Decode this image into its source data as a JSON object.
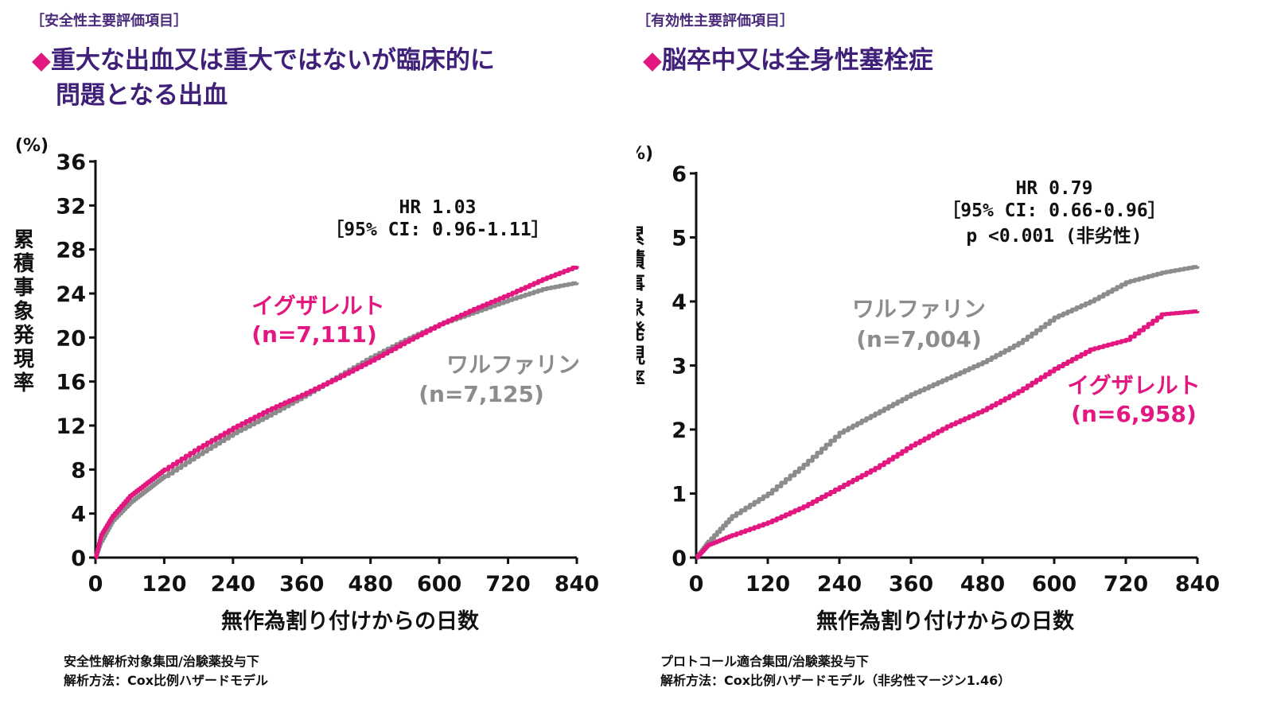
{
  "colors": {
    "pink": "#e2177f",
    "gray": "#8c8c8c",
    "heading": "#3f1f78",
    "axis": "#111111"
  },
  "left": {
    "category": "［安全性主要評価項目］",
    "diamond": "◆",
    "title_line1": "重大な出血又は重大ではないが臨床的に",
    "title_line2": "問題となる出血",
    "footnote_line1": "安全性解析対象集団/治験薬投与下",
    "footnote_line2": "解析方法：Cox比例ハザードモデル"
  },
  "right": {
    "category": "［有効性主要評価項目］",
    "diamond": "◆",
    "title_line1": "脳卒中又は全身性塞栓症",
    "footnote_line1": "プロトコール適合集団/治験薬投与下",
    "footnote_line2": "解析方法：Cox比例ハザードモデル（非劣性マージン1.46）"
  },
  "chart_data": [
    {
      "type": "line",
      "unit_label": "(%)",
      "ylabel": "累積事象発現率",
      "xlabel": "無作為割り付けからの日数",
      "xlim": [
        0,
        840
      ],
      "ylim": [
        0,
        36
      ],
      "x_ticks": [
        0,
        120,
        240,
        360,
        480,
        600,
        720,
        840
      ],
      "y_ticks": [
        0,
        4,
        8,
        12,
        16,
        20,
        24,
        28,
        32,
        36
      ],
      "stats": [
        "HR 1.03",
        "［95% CI: 0.96-1.11］"
      ],
      "series": [
        {
          "name": "ワルファリン",
          "n_label": "(n=7,125)",
          "color": "#8c8c8c",
          "x": [
            0,
            10,
            30,
            60,
            90,
            120,
            180,
            240,
            300,
            360,
            420,
            480,
            540,
            600,
            660,
            720,
            780,
            840
          ],
          "values": [
            0,
            1.5,
            3.4,
            5.0,
            6.2,
            7.4,
            9.4,
            11.3,
            12.9,
            14.6,
            16.4,
            18.2,
            19.8,
            21.2,
            22.3,
            23.4,
            24.4,
            25.0
          ]
        },
        {
          "name": "イグザレルト",
          "n_label": "(n=7,111)",
          "color": "#e2177f",
          "x": [
            0,
            10,
            30,
            60,
            90,
            120,
            180,
            240,
            300,
            360,
            420,
            480,
            540,
            600,
            660,
            720,
            780,
            840
          ],
          "values": [
            0,
            2.1,
            3.8,
            5.6,
            6.8,
            8.0,
            10.0,
            11.8,
            13.4,
            14.8,
            16.3,
            17.9,
            19.6,
            21.2,
            22.6,
            23.9,
            25.3,
            26.5
          ]
        }
      ]
    },
    {
      "type": "line",
      "unit_label": "(%)",
      "ylabel": "累積事象発現率",
      "xlabel": "無作為割り付けからの日数",
      "xlim": [
        0,
        840
      ],
      "ylim": [
        0,
        6
      ],
      "x_ticks": [
        0,
        120,
        240,
        360,
        480,
        600,
        720,
        840
      ],
      "y_ticks": [
        0,
        1,
        2,
        3,
        4,
        5,
        6
      ],
      "stats": [
        "HR 0.79",
        "［95% CI: 0.66-0.96］",
        "p <0.001 (非劣性)"
      ],
      "series": [
        {
          "name": "ワルファリン",
          "n_label": "(n=7,004)",
          "color": "#8c8c8c",
          "x": [
            0,
            20,
            60,
            120,
            180,
            240,
            300,
            360,
            420,
            480,
            540,
            600,
            660,
            720,
            780,
            840
          ],
          "values": [
            0,
            0.25,
            0.65,
            1.0,
            1.45,
            1.95,
            2.25,
            2.55,
            2.8,
            3.05,
            3.35,
            3.75,
            4.0,
            4.3,
            4.45,
            4.55
          ]
        },
        {
          "name": "イグザレルト",
          "n_label": "(n=6,958)",
          "color": "#e2177f",
          "x": [
            0,
            20,
            60,
            120,
            180,
            240,
            300,
            360,
            420,
            480,
            540,
            600,
            660,
            720,
            780,
            840
          ],
          "values": [
            0,
            0.2,
            0.35,
            0.55,
            0.8,
            1.1,
            1.4,
            1.75,
            2.05,
            2.3,
            2.6,
            2.95,
            3.25,
            3.4,
            3.8,
            3.85
          ]
        }
      ]
    }
  ]
}
